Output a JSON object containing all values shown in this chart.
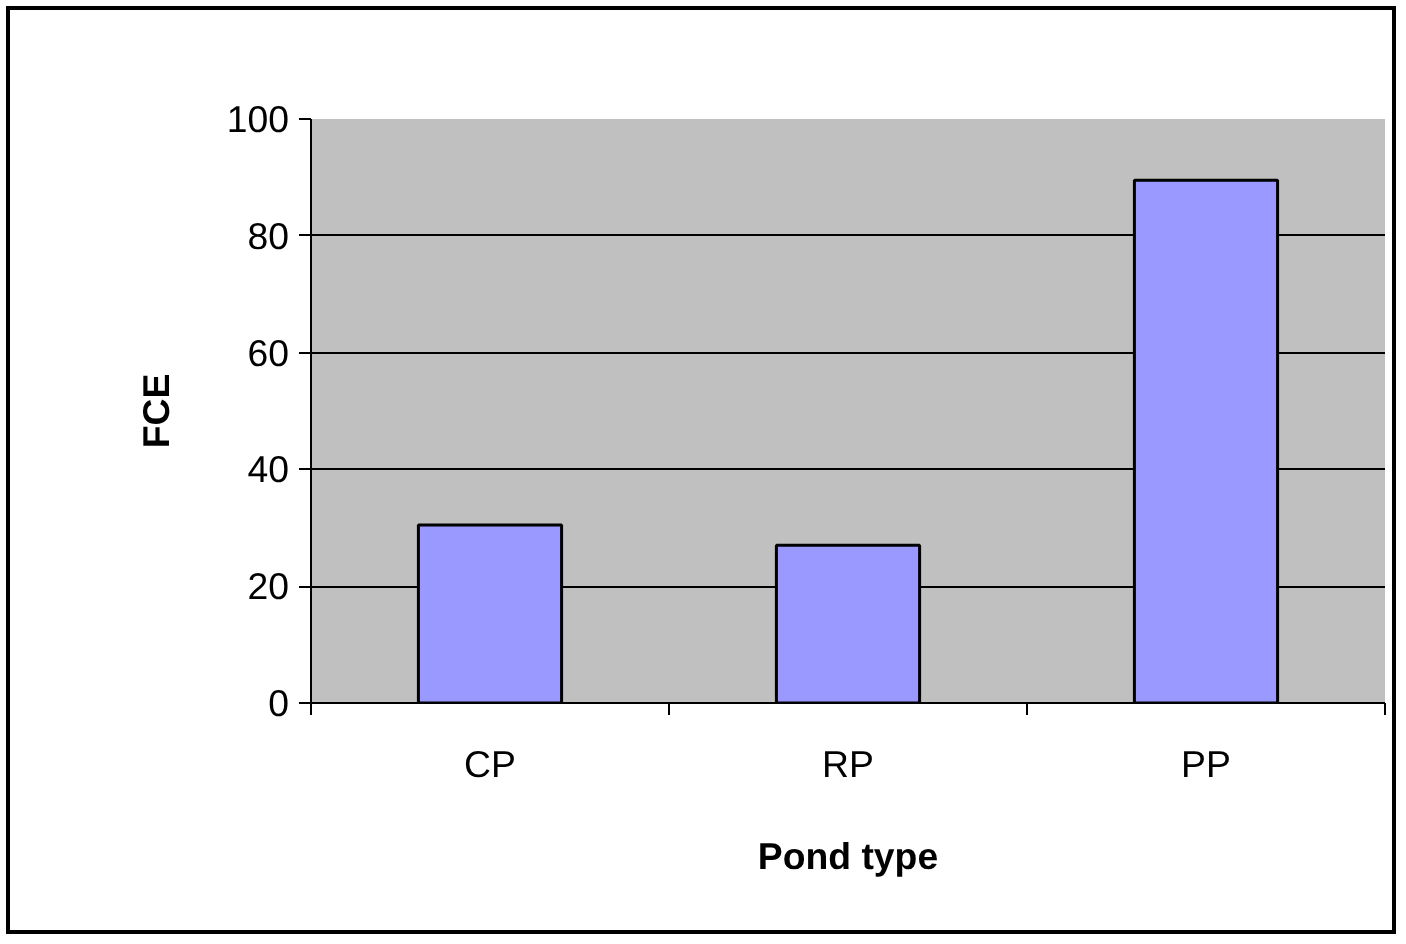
{
  "chart_data": {
    "type": "bar",
    "xlabel": "Pond type",
    "ylabel": "FCE",
    "categories": [
      "CP",
      "RP",
      "PP"
    ],
    "values": [
      30.5,
      27,
      89.5
    ],
    "color": "#9999ff",
    "ylim": [
      0,
      100
    ],
    "yticks": [
      0,
      20,
      40,
      60,
      80,
      100
    ],
    "grid": "y"
  }
}
